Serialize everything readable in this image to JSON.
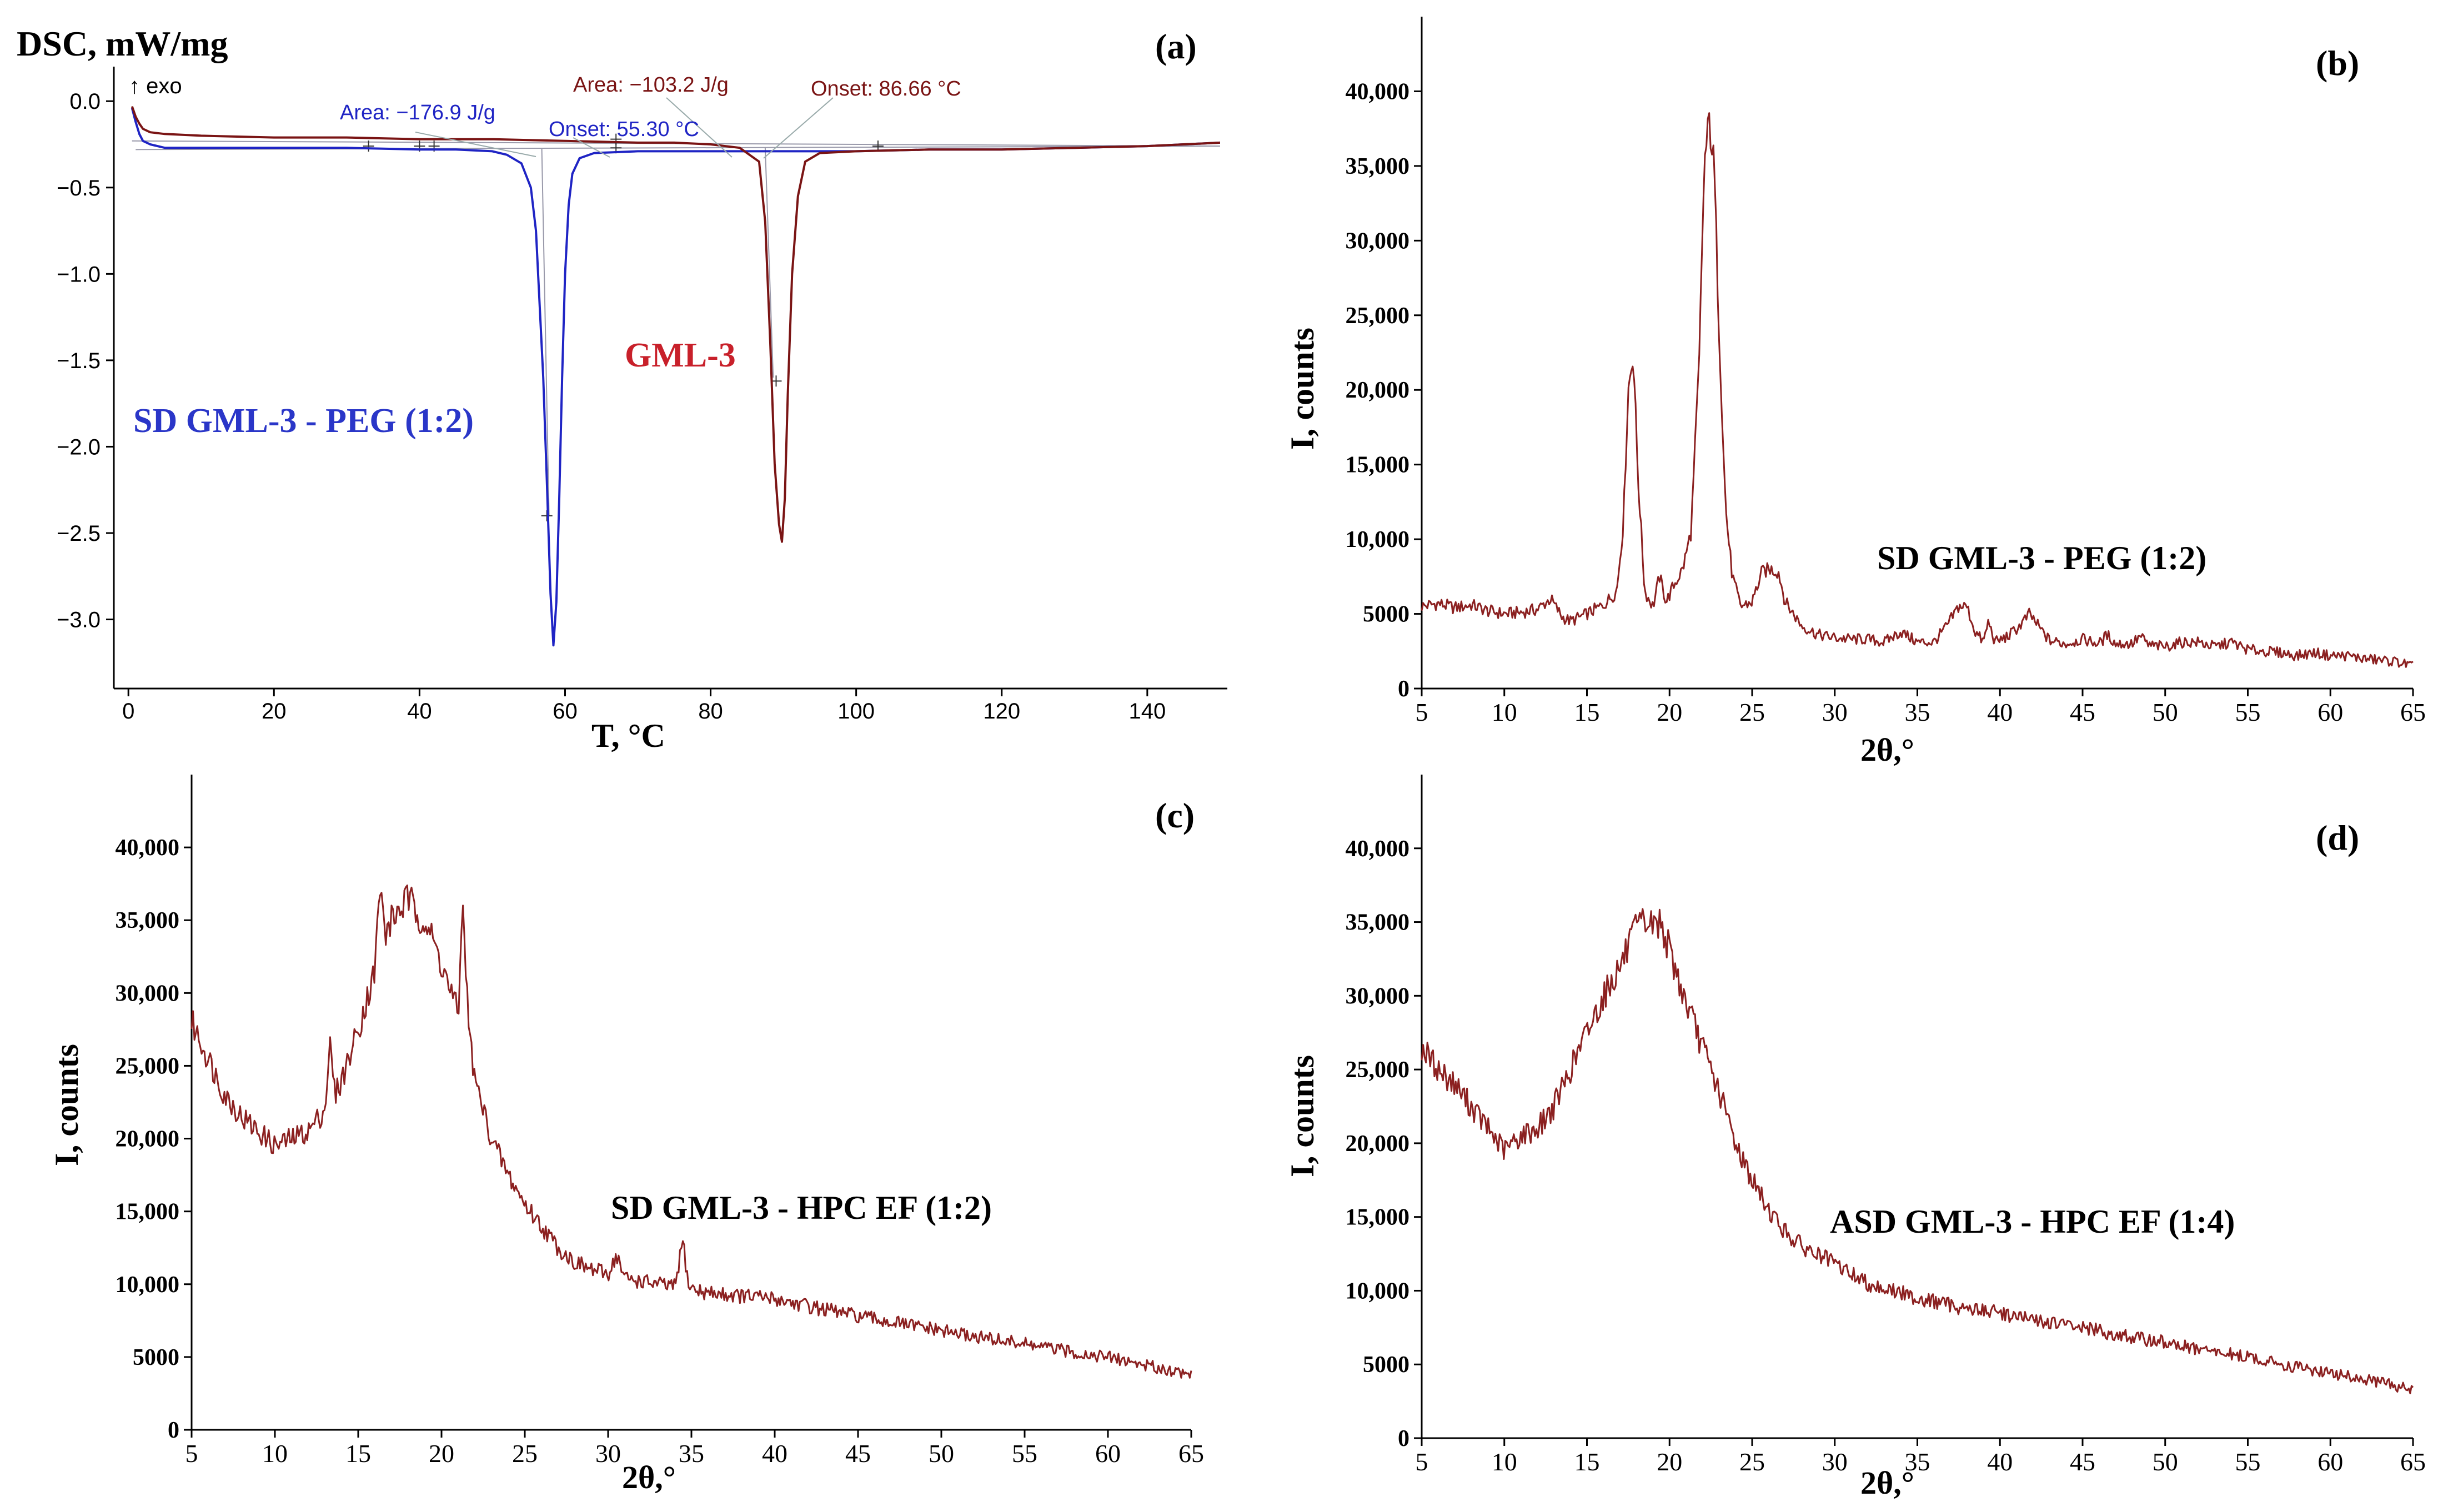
{
  "colors": {
    "dsc_blue": "#1f24c4",
    "dsc_darkred": "#7a1414",
    "label_red": "#c8202a",
    "xrd_line": "#8b2020"
  },
  "chart_data": [
    {
      "panel": "(a)",
      "type": "line",
      "ylabel": "DSC, mW/mg",
      "xlabel": "T, °C",
      "xlim": [
        -2,
        151
      ],
      "ylim": [
        -3.4,
        0.2
      ],
      "x_ticks": [
        0,
        20,
        40,
        60,
        80,
        100,
        120,
        140
      ],
      "x_tick_labels": [
        "0",
        "20",
        "40",
        "60",
        "80",
        "100",
        "120",
        "140"
      ],
      "y_ticks": [
        0.0,
        -0.5,
        -1.0,
        -1.5,
        -2.0,
        -2.5,
        -3.0
      ],
      "y_tick_labels": [
        "0.0",
        "−0.5",
        "−1.0",
        "−1.5",
        "−2.0",
        "−2.5",
        "−3.0"
      ],
      "exo_label": "↑ exo",
      "series": [
        {
          "name": "SD GML-3 - PEG (1:2)",
          "color": "#1f24c4",
          "x": [
            0.5,
            1.0,
            1.5,
            2.0,
            3.0,
            5.0,
            10,
            20,
            30,
            40,
            45,
            50,
            52,
            54,
            55.3,
            56,
            57,
            57.5,
            58,
            58.4,
            58.8,
            59.2,
            59.6,
            60,
            60.5,
            61,
            62,
            64,
            70,
            80,
            90,
            100,
            110,
            120,
            130,
            140,
            150
          ],
          "values": [
            -0.04,
            -0.12,
            -0.19,
            -0.23,
            -0.25,
            -0.27,
            -0.27,
            -0.27,
            -0.27,
            -0.28,
            -0.28,
            -0.29,
            -0.31,
            -0.36,
            -0.5,
            -0.75,
            -1.6,
            -2.2,
            -2.85,
            -3.15,
            -2.9,
            -2.3,
            -1.6,
            -1.0,
            -0.6,
            -0.42,
            -0.33,
            -0.3,
            -0.29,
            -0.29,
            -0.29,
            -0.29,
            -0.28,
            -0.28,
            -0.27,
            -0.26,
            -0.24
          ]
        },
        {
          "name": "GML-3",
          "color": "#7a1414",
          "x": [
            0.5,
            1.0,
            1.5,
            2.0,
            3.0,
            5.0,
            10,
            20,
            30,
            40,
            50,
            60,
            70,
            75,
            80,
            84,
            86.66,
            87.5,
            88.2,
            88.8,
            89.4,
            89.8,
            90.2,
            90.6,
            91.2,
            92,
            93,
            95,
            100,
            110,
            120,
            130,
            140,
            150
          ],
          "values": [
            -0.03,
            -0.09,
            -0.13,
            -0.16,
            -0.18,
            -0.19,
            -0.2,
            -0.21,
            -0.21,
            -0.22,
            -0.22,
            -0.23,
            -0.24,
            -0.24,
            -0.25,
            -0.27,
            -0.35,
            -0.7,
            -1.4,
            -2.1,
            -2.45,
            -2.55,
            -2.3,
            -1.7,
            -1.0,
            -0.55,
            -0.35,
            -0.3,
            -0.29,
            -0.28,
            -0.28,
            -0.27,
            -0.26,
            -0.24
          ]
        }
      ],
      "annotations": [
        {
          "series": "SD GML-3 - PEG (1:2)",
          "area": "Area: −176.9 J/g",
          "onset": "Onset: 55.30 °C"
        },
        {
          "series": "GML-3",
          "area": "Area: −103.2 J/g",
          "onset": "Onset: 86.66 °C"
        }
      ],
      "series_labels": [
        "SD GML-3 - PEG (1:2)",
        "GML-3"
      ]
    },
    {
      "panel": "(b)",
      "type": "line",
      "xlabel": "2θ,°",
      "ylabel": "I, counts",
      "xlim": [
        5,
        65
      ],
      "ylim": [
        0,
        45000
      ],
      "x_ticks": [
        5,
        10,
        15,
        20,
        25,
        30,
        35,
        40,
        45,
        50,
        55,
        60,
        65
      ],
      "x_tick_labels": [
        "5",
        "10",
        "15",
        "20",
        "25",
        "30",
        "35",
        "40",
        "45",
        "50",
        "55",
        "60",
        "65"
      ],
      "y_ticks": [
        0,
        5000,
        10000,
        15000,
        20000,
        25000,
        30000,
        35000,
        40000
      ],
      "y_tick_labels": [
        "0",
        "5000",
        "10,000",
        "15,000",
        "20,000",
        "25,000",
        "30,000",
        "35,000",
        "40,000"
      ],
      "sample": "SD GML-3 - PEG (1:2)",
      "x": [
        5,
        6,
        7,
        8,
        9,
        10,
        11,
        12,
        12.8,
        13.5,
        14,
        15,
        16,
        16.8,
        17.2,
        17.5,
        17.8,
        18.1,
        18.5,
        19,
        19.4,
        19.8,
        20.3,
        20.8,
        21.3,
        21.8,
        22.1,
        22.4,
        22.7,
        23.0,
        23.4,
        23.8,
        24.3,
        25,
        25.6,
        26.1,
        26.6,
        27,
        27.5,
        28,
        29,
        30,
        31,
        32,
        33,
        34,
        35,
        36,
        36.8,
        37.5,
        38,
        38.5,
        39,
        39.3,
        39.7,
        40.5,
        41.2,
        41.8,
        42.3,
        43,
        44,
        45,
        46,
        46.5,
        47,
        48,
        48.5,
        49,
        50,
        51,
        52,
        53,
        54,
        55,
        56,
        57,
        58,
        59,
        60,
        61,
        62,
        63,
        64,
        65
      ],
      "values": [
        5500,
        5700,
        5400,
        5600,
        5200,
        5000,
        5100,
        5300,
        6000,
        4800,
        4500,
        5000,
        5600,
        6500,
        11000,
        20000,
        22500,
        14000,
        6500,
        5500,
        7500,
        5800,
        7000,
        8000,
        10500,
        22000,
        35000,
        38000,
        35000,
        24000,
        12000,
        7500,
        5500,
        5800,
        7800,
        8000,
        7800,
        5800,
        5000,
        4200,
        3600,
        3400,
        3300,
        3300,
        3100,
        3800,
        3100,
        3100,
        4200,
        5500,
        5500,
        3800,
        3100,
        4500,
        3100,
        3500,
        4200,
        5000,
        4200,
        3200,
        3000,
        3300,
        3000,
        3600,
        3000,
        3000,
        3500,
        2900,
        2800,
        3100,
        3100,
        2800,
        3100,
        2600,
        2500,
        2400,
        2200,
        2400,
        2200,
        2200,
        2000,
        1900,
        1800,
        1500
      ]
    },
    {
      "panel": "(c)",
      "type": "line",
      "xlabel": "2θ,°",
      "ylabel": "I, counts",
      "xlim": [
        5,
        65
      ],
      "ylim": [
        0,
        45000
      ],
      "x_ticks": [
        5,
        10,
        15,
        20,
        25,
        30,
        35,
        40,
        45,
        50,
        55,
        60,
        65
      ],
      "x_tick_labels": [
        "5",
        "10",
        "15",
        "20",
        "25",
        "30",
        "35",
        "40",
        "45",
        "50",
        "55",
        "60",
        "65"
      ],
      "y_ticks": [
        0,
        5000,
        10000,
        15000,
        20000,
        25000,
        30000,
        35000,
        40000
      ],
      "y_tick_labels": [
        "0",
        "5000",
        "10,000",
        "15,000",
        "20,000",
        "25,000",
        "30,000",
        "35,000",
        "40,000"
      ],
      "sample": "SD GML-3 - HPC EF (1:2)",
      "x": [
        5,
        6,
        7,
        8,
        9,
        10,
        11,
        12,
        13,
        13.3,
        13.6,
        14,
        15,
        16,
        16.3,
        16.6,
        17,
        18,
        18.5,
        19,
        20,
        21,
        21.3,
        21.6,
        22,
        23,
        24,
        25,
        26,
        27,
        28,
        29,
        30,
        30.5,
        31,
        32,
        33,
        34,
        34.5,
        34.8,
        35.2,
        36,
        38,
        40,
        42,
        45,
        48,
        50,
        52,
        55,
        58,
        60,
        62,
        65
      ],
      "values": [
        28000,
        25500,
        23000,
        21500,
        20500,
        19500,
        20000,
        20500,
        22000,
        26500,
        23000,
        24000,
        27500,
        31500,
        37500,
        34000,
        35000,
        36500,
        35500,
        35000,
        32000,
        28500,
        36500,
        28000,
        24000,
        20000,
        17500,
        15500,
        14000,
        12500,
        11500,
        11000,
        10700,
        12000,
        10400,
        10200,
        10000,
        9800,
        13000,
        10000,
        9600,
        9400,
        9200,
        9000,
        8500,
        7800,
        7200,
        6800,
        6400,
        5900,
        5300,
        5000,
        4500,
        3800
      ]
    },
    {
      "panel": "(d)",
      "type": "line",
      "xlabel": "2θ,°",
      "ylabel": "I, counts",
      "xlim": [
        5,
        65
      ],
      "ylim": [
        0,
        45000
      ],
      "x_ticks": [
        5,
        10,
        15,
        20,
        25,
        30,
        35,
        40,
        45,
        50,
        55,
        60,
        65
      ],
      "x_tick_labels": [
        "5",
        "10",
        "15",
        "20",
        "25",
        "30",
        "35",
        "40",
        "45",
        "50",
        "55",
        "60",
        "65"
      ],
      "y_ticks": [
        0,
        5000,
        10000,
        15000,
        20000,
        25000,
        30000,
        35000,
        40000
      ],
      "y_tick_labels": [
        "0",
        "5000",
        "10,000",
        "15,000",
        "20,000",
        "25,000",
        "30,000",
        "35,000",
        "40,000"
      ],
      "sample": "ASD GML-3 - HPC EF (1:4)",
      "x": [
        5,
        6,
        7,
        8,
        9,
        10,
        11,
        12,
        13,
        14,
        15,
        16,
        17,
        18,
        18.5,
        19,
        19.5,
        20,
        21,
        22,
        23,
        24,
        25,
        26,
        27,
        28,
        30,
        32,
        35,
        38,
        40,
        42,
        45,
        48,
        50,
        52,
        55,
        58,
        60,
        62,
        65
      ],
      "values": [
        26500,
        25000,
        24000,
        22500,
        21000,
        19500,
        20500,
        21000,
        22500,
        25000,
        27500,
        30000,
        32000,
        34500,
        35000,
        34800,
        35000,
        33000,
        29500,
        26500,
        23500,
        20000,
        17500,
        15500,
        14000,
        13000,
        11800,
        10500,
        9500,
        8800,
        8500,
        8000,
        7500,
        6800,
        6500,
        6000,
        5500,
        4800,
        4400,
        4000,
        3300
      ]
    }
  ]
}
